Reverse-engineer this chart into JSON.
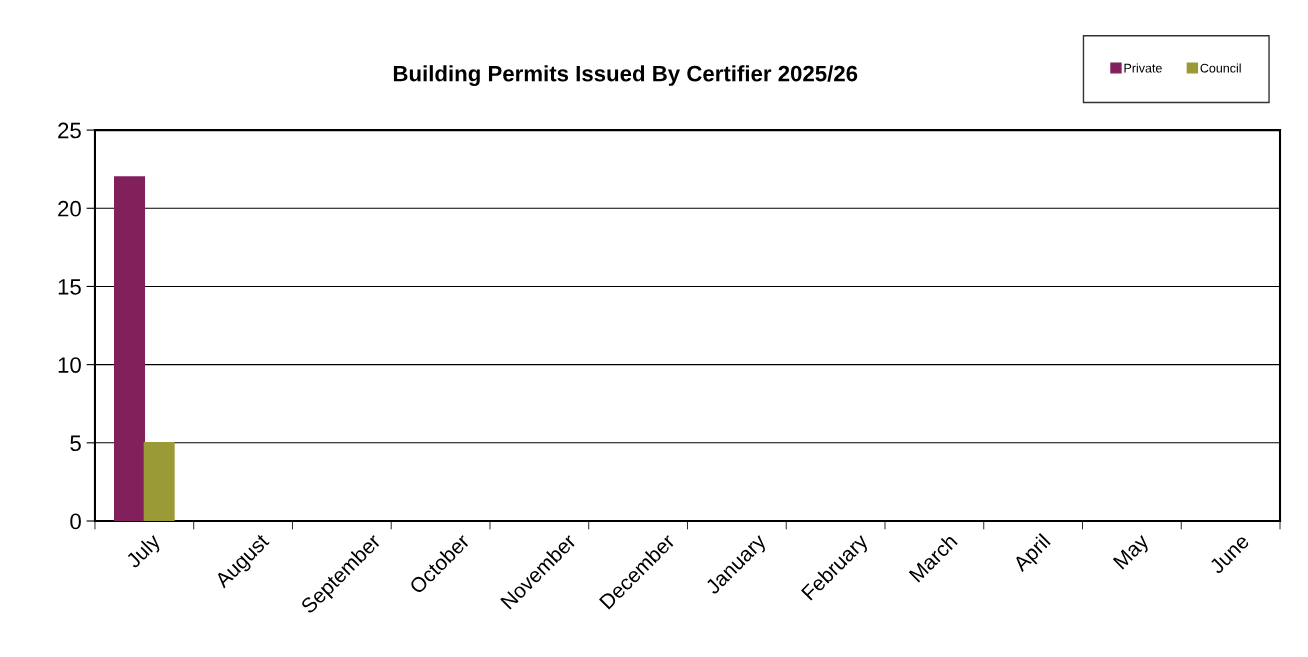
{
  "chart_data": {
    "type": "bar",
    "title": "Building Permits Issued By Certifier 2025/26",
    "categories": [
      "July",
      "August",
      "September",
      "October",
      "November",
      "December",
      "January",
      "February",
      "March",
      "April",
      "May",
      "June"
    ],
    "series": [
      {
        "name": "Private",
        "color": "#82205c",
        "values": [
          22,
          null,
          null,
          null,
          null,
          null,
          null,
          null,
          null,
          null,
          null,
          null
        ]
      },
      {
        "name": "Council",
        "color": "#9a9a36",
        "values": [
          5,
          null,
          null,
          null,
          null,
          null,
          null,
          null,
          null,
          null,
          null,
          null
        ]
      }
    ],
    "ylim": [
      0,
      25
    ],
    "yticks": [
      0,
      5,
      10,
      15,
      20,
      25
    ],
    "grid": "y",
    "legend": "top right"
  }
}
